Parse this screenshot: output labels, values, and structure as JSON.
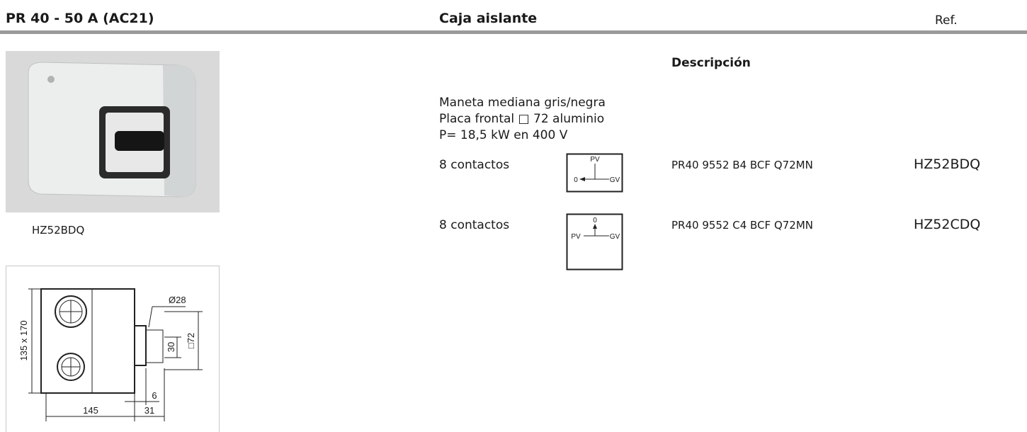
{
  "header": {
    "title": "PR 40 - 50 A (AC21)",
    "section": "Caja aislante",
    "ref_label": "Ref."
  },
  "product_image": {
    "caption": "HZ52BDQ"
  },
  "dimension_drawing": {
    "labels": {
      "diameter": "Ø28",
      "size": "135 x 170",
      "handle_height": "30",
      "plate": "□72",
      "offset": "6",
      "width": "145",
      "depth": "31"
    }
  },
  "description": {
    "heading": "Descripción",
    "lines": [
      "Maneta mediana gris/negra",
      "Placa frontal □ 72 aluminio",
      "P= 18,5 kW en 400 V"
    ]
  },
  "rows": [
    {
      "contacts": "8 contactos",
      "diagram": {
        "top": "PV",
        "left": "0",
        "right": "GV"
      },
      "code": "PR40 9552 B4 BCF Q72MN",
      "ref": "HZ52BDQ"
    },
    {
      "contacts": "8 contactos",
      "diagram": {
        "top": "0",
        "left": "PV",
        "right": "GV"
      },
      "code": "PR40 9552 C4 BCF Q72MN",
      "ref": "HZ52CDQ"
    }
  ]
}
